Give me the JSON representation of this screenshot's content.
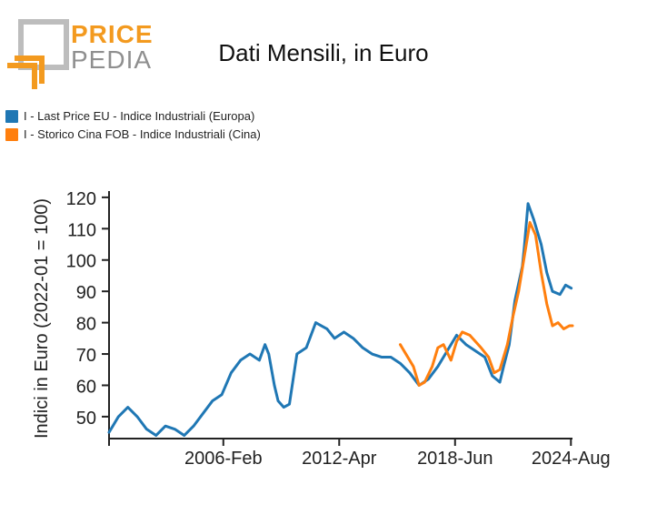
{
  "logo": {
    "line1": "PRICE",
    "line2": "PEDIA"
  },
  "title": "Dati Mensili, in Euro",
  "legend": [
    {
      "label": "I - Last Price EU - Indice Industriali (Europa)",
      "color": "#1f77b4"
    },
    {
      "label": "I - Storico Cina FOB - Indice Industriali (Cina)",
      "color": "#ff7f0e"
    }
  ],
  "chart_data": {
    "type": "line",
    "title": "Dati Mensili, in Euro",
    "xlabel": "",
    "ylabel": "Indici in Euro (2022-01 = 100)",
    "grid": false,
    "legend_position": "top-left",
    "x_ticks": [
      "2006-Feb",
      "2012-Apr",
      "2018-Jun",
      "2024-Aug"
    ],
    "y_ticks": [
      50,
      60,
      70,
      80,
      90,
      100,
      110,
      120
    ],
    "xlim": [
      2000.0,
      2024.6667
    ],
    "ylim": [
      43,
      122
    ],
    "series": [
      {
        "name": "I - Last Price EU - Indice Industriali (Europa)",
        "color": "#1f77b4",
        "x": [
          2000.0,
          2000.5,
          2001.0,
          2001.5,
          2002.0,
          2002.5,
          2003.0,
          2003.5,
          2004.0,
          2004.5,
          2005.0,
          2005.5,
          2006.0,
          2006.5,
          2007.0,
          2007.5,
          2008.0,
          2008.3,
          2008.5,
          2008.8,
          2009.0,
          2009.3,
          2009.6,
          2010.0,
          2010.5,
          2011.0,
          2011.3,
          2011.6,
          2012.0,
          2012.5,
          2013.0,
          2013.5,
          2014.0,
          2014.5,
          2015.0,
          2015.5,
          2016.0,
          2016.5,
          2017.0,
          2017.5,
          2018.0,
          2018.5,
          2019.0,
          2019.5,
          2020.0,
          2020.4,
          2020.8,
          2021.0,
          2021.3,
          2021.6,
          2022.0,
          2022.1,
          2022.3,
          2022.6,
          2023.0,
          2023.3,
          2023.6,
          2024.0,
          2024.3,
          2024.6
        ],
        "y": [
          45,
          50,
          53,
          50,
          46,
          44,
          47,
          46,
          44,
          47,
          51,
          55,
          57,
          64,
          68,
          70,
          68,
          73,
          70,
          60,
          55,
          53,
          54,
          70,
          72,
          80,
          79,
          78,
          75,
          77,
          75,
          72,
          70,
          69,
          69,
          67,
          64,
          60,
          62,
          66,
          71,
          76,
          73,
          71,
          69,
          63,
          61,
          66,
          73,
          87,
          98,
          104,
          118,
          113,
          105,
          96,
          90,
          89,
          92,
          91
        ]
      },
      {
        "name": "I - Storico Cina FOB - Indice Industriali (Cina)",
        "color": "#ff7f0e",
        "x": [
          2015.5,
          2015.8,
          2016.2,
          2016.5,
          2016.8,
          2017.2,
          2017.5,
          2017.8,
          2018.2,
          2018.5,
          2018.8,
          2019.2,
          2019.5,
          2019.8,
          2020.2,
          2020.5,
          2020.8,
          2021.2,
          2021.5,
          2021.8,
          2022.1,
          2022.4,
          2022.7,
          2023.0,
          2023.3,
          2023.6,
          2023.9,
          2024.2,
          2024.5,
          2024.6667
        ],
        "y": [
          73,
          70,
          66,
          60,
          61,
          66,
          72,
          73,
          68,
          74,
          77,
          76,
          74,
          72,
          69,
          64,
          65,
          73,
          82,
          90,
          101,
          112,
          108,
          96,
          86,
          79,
          80,
          78,
          79,
          79
        ]
      }
    ]
  }
}
